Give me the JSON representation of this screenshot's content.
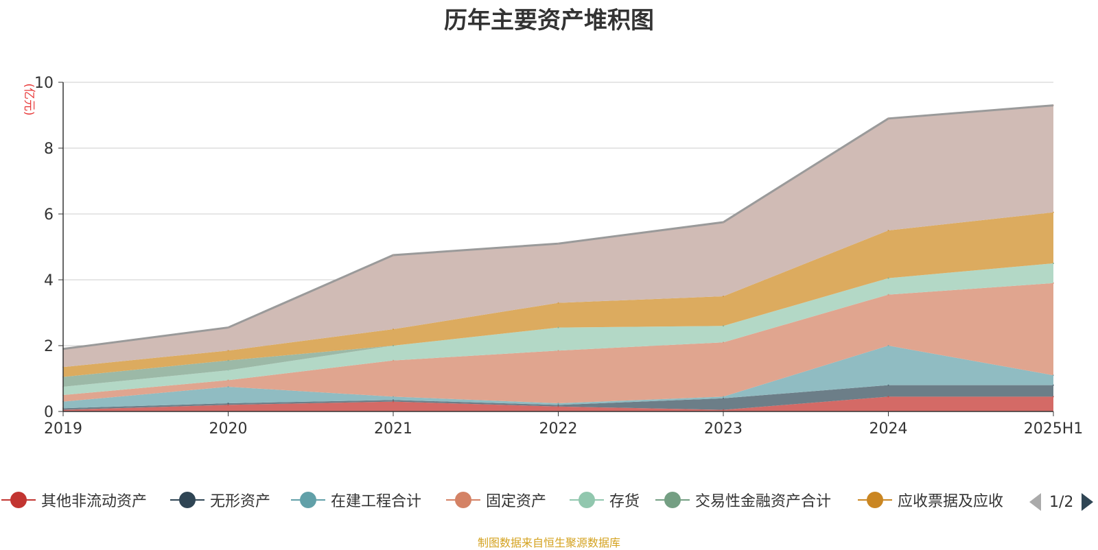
{
  "title": "历年主要资产堆积图",
  "source": "制图数据来自恒生聚源数据库",
  "pager": {
    "text": "1/2"
  },
  "chart_data": {
    "type": "area",
    "stacked": true,
    "title": "历年主要资产堆积图",
    "ylabel": "(亿元)",
    "ylim": [
      0,
      10
    ],
    "yticks": [
      0,
      2,
      4,
      6,
      8,
      10
    ],
    "grid": true,
    "legend_position": "bottom",
    "categories": [
      "2019",
      "2020",
      "2021",
      "2022",
      "2023",
      "2024",
      "2025H1"
    ],
    "series": [
      {
        "name": "其他非流动资产",
        "color": "#c23531",
        "fill": "#d46a66",
        "values": [
          0.05,
          0.2,
          0.3,
          0.15,
          0.05,
          0.45,
          0.45
        ]
      },
      {
        "name": "无形资产",
        "color": "#2f4554",
        "fill": "#6c7e88",
        "values": [
          0.05,
          0.05,
          0.05,
          0.05,
          0.35,
          0.35,
          0.35
        ]
      },
      {
        "name": "在建工程合计",
        "color": "#61a0a8",
        "fill": "#90bcc2",
        "values": [
          0.2,
          0.5,
          0.1,
          0.05,
          0.05,
          1.2,
          0.3
        ]
      },
      {
        "name": "固定资产",
        "color": "#d48265",
        "fill": "#e0a58f",
        "values": [
          0.2,
          0.2,
          1.1,
          1.6,
          1.65,
          1.55,
          2.8
        ]
      },
      {
        "name": "存货",
        "color": "#91c7ae",
        "fill": "#b3d8c6",
        "values": [
          0.25,
          0.3,
          0.45,
          0.7,
          0.5,
          0.5,
          0.6
        ]
      },
      {
        "name": "交易性金融资产合计",
        "color": "#749f83",
        "fill": "#9cb9a7",
        "values": [
          0.3,
          0.3,
          0.0,
          0.0,
          0.0,
          0.0,
          0.0
        ]
      },
      {
        "name": "应收票据及应收",
        "color": "#ca8622",
        "fill": "#dcab5f",
        "values": [
          0.3,
          0.3,
          0.5,
          0.75,
          0.9,
          1.45,
          1.55
        ]
      },
      {
        "name": "",
        "color": "#bda29a",
        "fill": "#d0bbb5",
        "values": [
          0.55,
          0.7,
          2.25,
          1.8,
          2.25,
          3.4,
          3.25
        ]
      }
    ]
  }
}
